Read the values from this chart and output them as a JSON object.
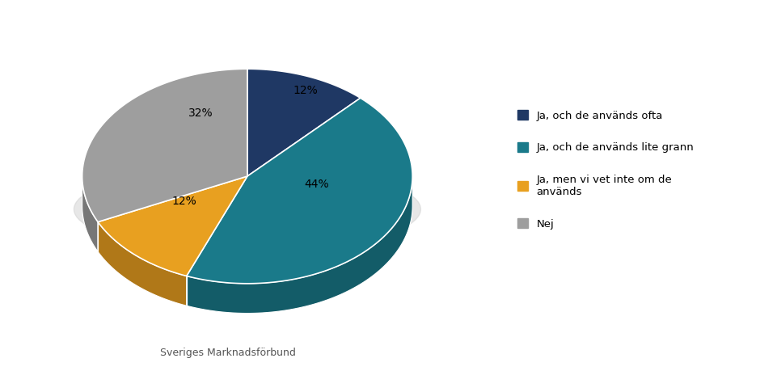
{
  "labels": [
    "Ja, och de används ofta",
    "Ja, och de används lite grann",
    "Ja, men vi vet inte om de\nanvänds",
    "Nej"
  ],
  "values": [
    12,
    44,
    12,
    32
  ],
  "colors": [
    "#1f3864",
    "#1a7a8a",
    "#e8a020",
    "#9e9e9e"
  ],
  "dark_colors": [
    "#152749",
    "#135c68",
    "#b07818",
    "#777777"
  ],
  "pct_labels": [
    "12%",
    "44%",
    "12%",
    "32%"
  ],
  "legend_labels": [
    "Ja, och de används ofta",
    "Ja, och de används lite grann",
    "Ja, men vi vet inte om de\nanvänds",
    "Nej"
  ],
  "footer_text": "Sveriges Marknadsförbund",
  "background_color": "#ffffff",
  "startangle": 90,
  "figsize": [
    9.4,
    4.59
  ],
  "dpi": 100
}
